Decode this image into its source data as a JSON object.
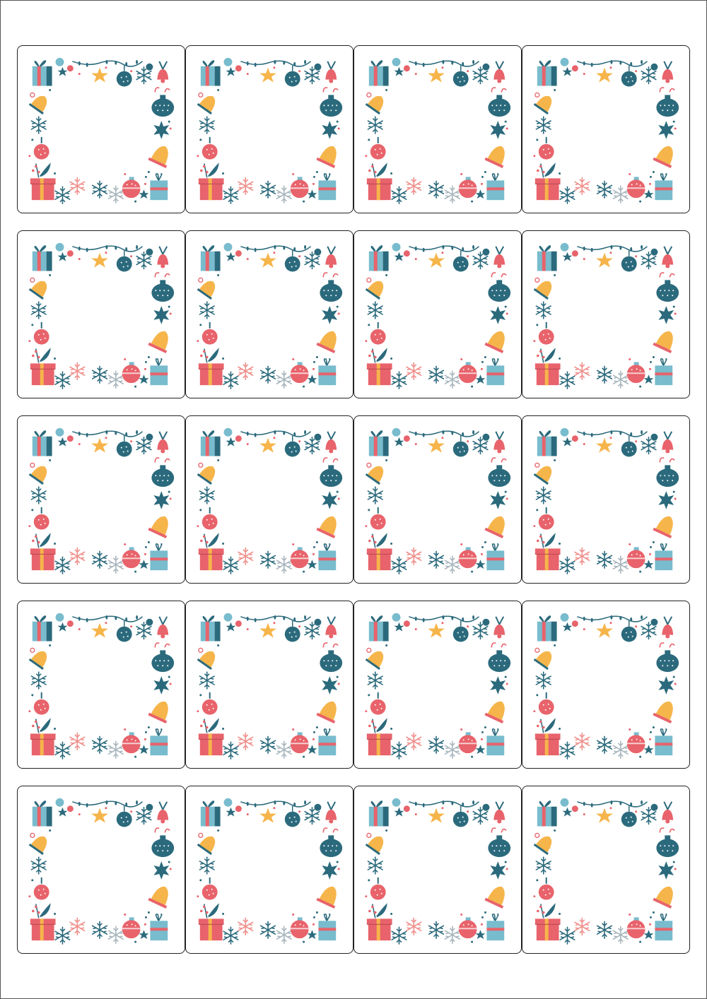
{
  "sheet": {
    "rows": 5,
    "columns": 4,
    "label_design": "christmas-ornament-frame"
  },
  "colors": {
    "teal": "#2b6a7c",
    "red": "#e8636b",
    "yellow": "#f6b54b",
    "light_blue": "#78bccd",
    "pink": "#ef8f8a",
    "grey": "#a9b6bd",
    "label_border": "#222222"
  }
}
